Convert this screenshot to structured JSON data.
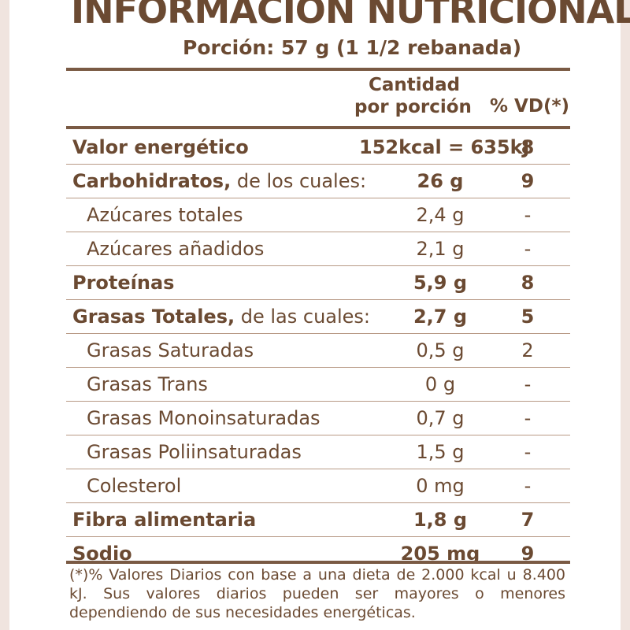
{
  "label": {
    "title": "INFORMACIÓN NUTRICIONAL",
    "serving": "Porción: 57 g (1 1/2 rebanada)",
    "header": {
      "amount_line1": "Cantidad",
      "amount_line2": "por porción",
      "dv": "% VD(*)"
    },
    "rows": [
      {
        "name": "Valor energético",
        "sub": "",
        "amount": "152kcal = 635kJ",
        "dv": "8"
      },
      {
        "name": "Carbohidratos,",
        "sub": " de los cuales:",
        "amount": "26 g",
        "dv": "9"
      },
      {
        "name": "Azúcares totales",
        "sub": "",
        "amount": "2,4 g",
        "dv": "-"
      },
      {
        "name": "Azúcares añadidos",
        "sub": "",
        "amount": "2,1 g",
        "dv": "-"
      },
      {
        "name": "Proteínas",
        "sub": "",
        "amount": "5,9 g",
        "dv": "8"
      },
      {
        "name": "Grasas Totales,",
        "sub": " de las cuales:",
        "amount": "2,7 g",
        "dv": "5"
      },
      {
        "name": "Grasas Saturadas",
        "sub": "",
        "amount": "0,5 g",
        "dv": "2"
      },
      {
        "name": "Grasas Trans",
        "sub": "",
        "amount": "0 g",
        "dv": "-"
      },
      {
        "name": "Grasas Monoinsaturadas",
        "sub": "",
        "amount": "0,7 g",
        "dv": "-"
      },
      {
        "name": "Grasas Poliinsaturadas",
        "sub": "",
        "amount": "1,5 g",
        "dv": "-"
      },
      {
        "name": "Colesterol",
        "sub": "",
        "amount": "0 mg",
        "dv": "-"
      },
      {
        "name": "Fibra alimentaria",
        "sub": "",
        "amount": "1,8 g",
        "dv": "7"
      },
      {
        "name": "Sodio",
        "sub": "",
        "amount": "205 mg",
        "dv": "9"
      }
    ],
    "footnote": "(*)% Valores Diarios con base a una dieta de 2.000 kcal u 8.400 kJ. Sus valores diarios pueden ser mayores o menores dependiendo de sus necesidades energéticas."
  },
  "colors": {
    "text": "#6b4a32",
    "rule": "#7a5a44",
    "thin_rule": "#b89a86",
    "edge": "#f0e4df"
  }
}
